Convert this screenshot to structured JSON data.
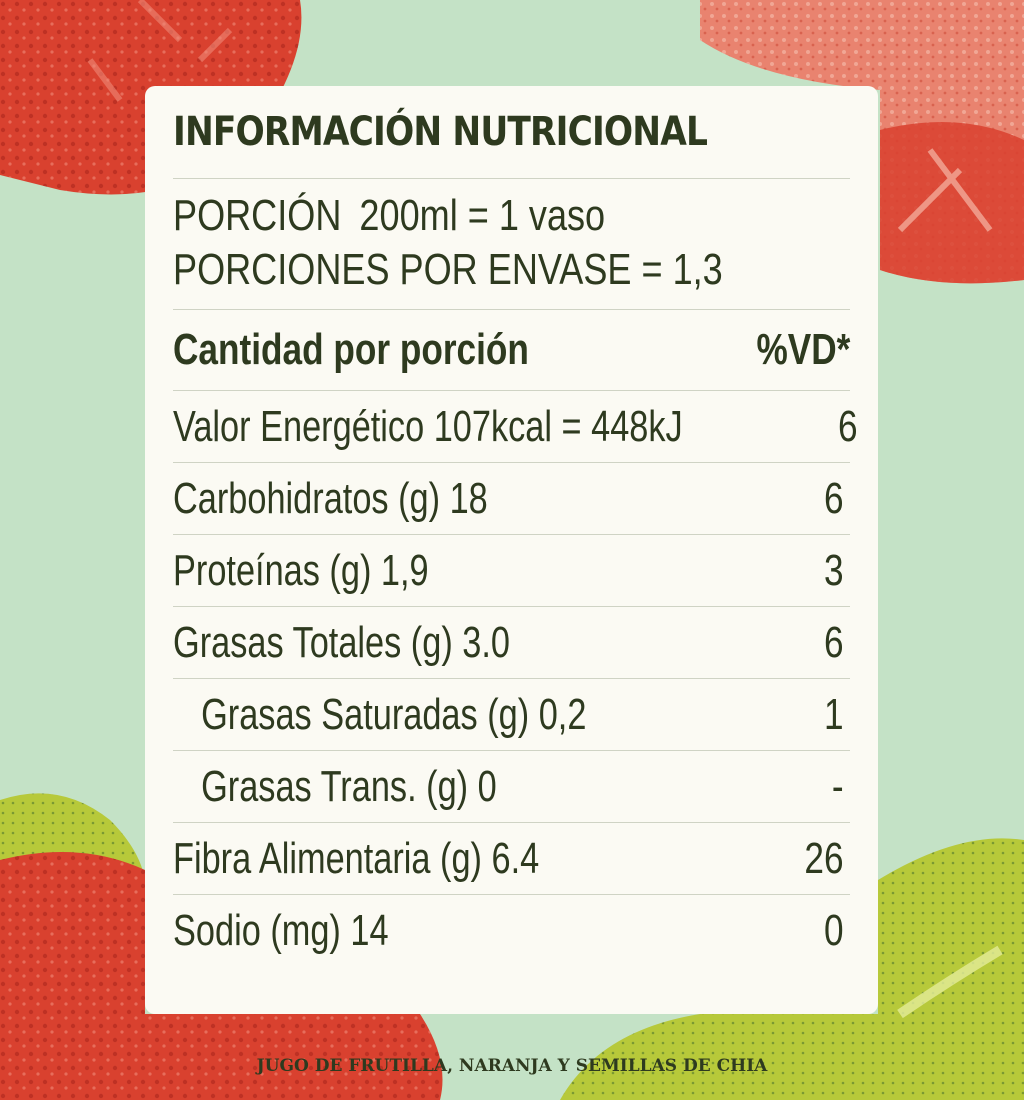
{
  "colors": {
    "background": "#c4e2c6",
    "panel": "#fbfaf3",
    "text": "#2e3a1f",
    "strawberry": "#d9412f",
    "strawberry_light": "#e9836f",
    "leaf": "#b7c93a"
  },
  "label": {
    "title": "INFORMACIÓN NUTRICIONAL",
    "portion_label": "PORCIÓN",
    "portion_value": "200ml = 1 vaso",
    "servings_line": "PORCIONES POR ENVASE = 1,3",
    "amount_header": "Cantidad por porción",
    "dv_header": "%VD*",
    "rows": [
      {
        "name": "Valor Energético 107kcal = 448kJ",
        "dv": "6"
      },
      {
        "name": "Carbohidratos (g) 18",
        "dv": "6"
      },
      {
        "name": "Proteínas (g) 1,9",
        "dv": "3"
      },
      {
        "name": "Grasas Totales (g) 3.0",
        "dv": "6"
      },
      {
        "name": "Grasas Saturadas (g) 0,2",
        "dv": "1"
      },
      {
        "name": "Grasas Trans. (g) 0",
        "dv": "-"
      },
      {
        "name": "Fibra Alimentaria (g) 6.4",
        "dv": "26"
      },
      {
        "name": "Sodio (mg) 14",
        "dv": "0"
      }
    ]
  },
  "footer": "JUGO DE FRUTILLA, NARANJA Y SEMILLAS DE CHIA"
}
